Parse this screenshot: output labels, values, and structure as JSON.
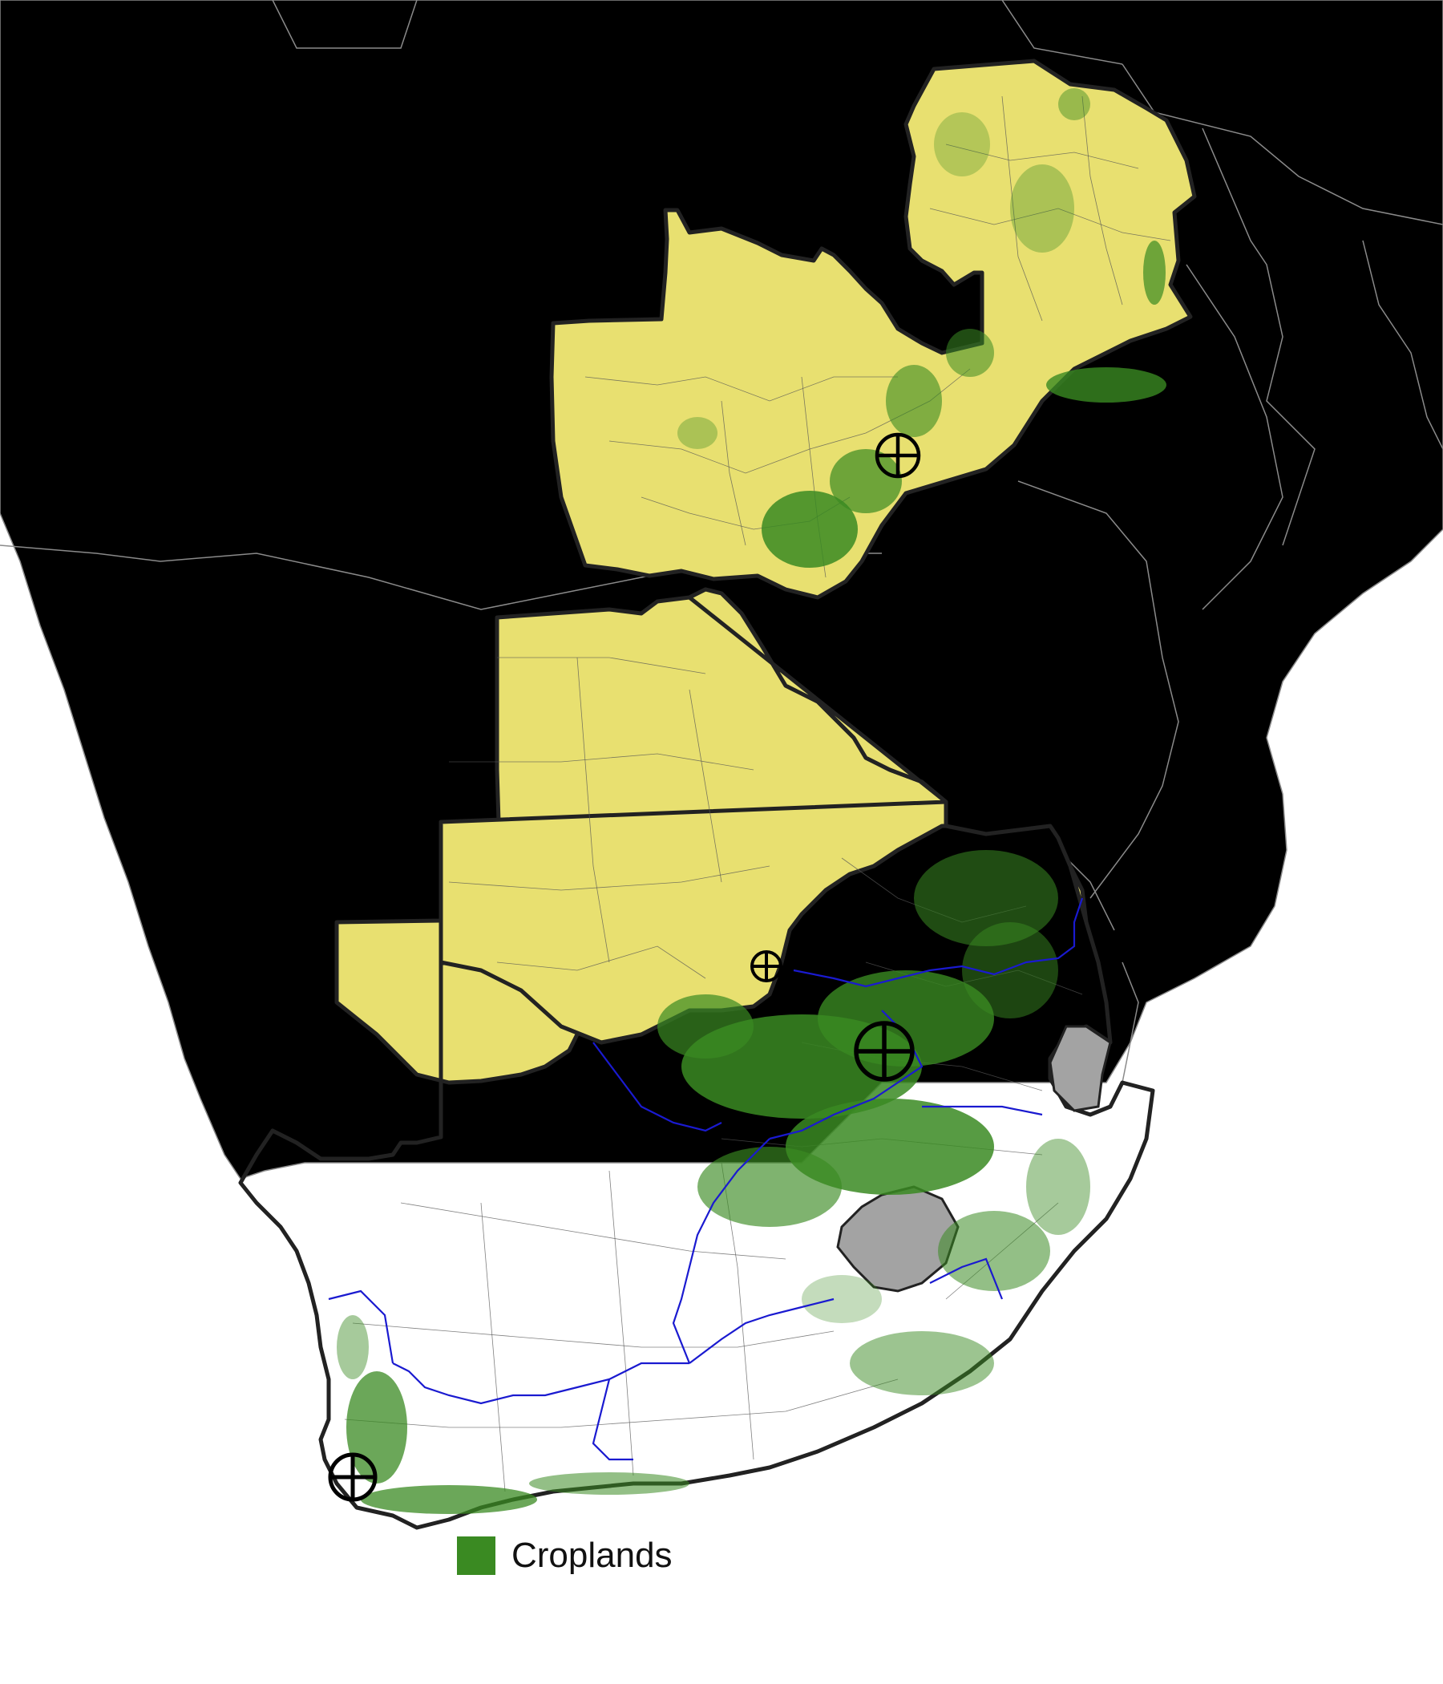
{
  "colors": {
    "ocean": "#ffffff",
    "neighbor_land": "#a3a3a3",
    "study_country": "#e8e070",
    "cropland": "#3a8a22",
    "river_basin": "#1a1ad0"
  },
  "legend": {
    "items": [
      {
        "label": "Croplands",
        "color": "#3a8a22"
      }
    ]
  },
  "markers": [
    {
      "name": "zambia-marker",
      "icon": "circle-crosshair-icon",
      "scale": "medium"
    },
    {
      "name": "botswana-marker",
      "icon": "circle-crosshair-icon",
      "scale": "small"
    },
    {
      "name": "south-africa-north-marker",
      "icon": "circle-crosshair-icon",
      "scale": "large"
    },
    {
      "name": "cape-town-marker",
      "icon": "circle-crosshair-icon",
      "scale": "medium"
    }
  ]
}
